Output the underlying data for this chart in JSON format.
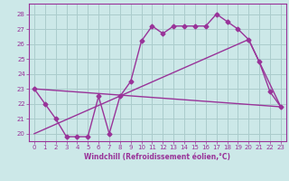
{
  "title": "",
  "xlabel": "Windchill (Refroidissement éolien,°C)",
  "background_color": "#cce8e8",
  "grid_color": "#aacccc",
  "line_color": "#993399",
  "spine_color": "#993399",
  "xlim": [
    -0.5,
    23.5
  ],
  "ylim": [
    19.5,
    28.7
  ],
  "xticks": [
    0,
    1,
    2,
    3,
    4,
    5,
    6,
    7,
    8,
    9,
    10,
    11,
    12,
    13,
    14,
    15,
    16,
    17,
    18,
    19,
    20,
    21,
    22,
    23
  ],
  "yticks": [
    20,
    21,
    22,
    23,
    24,
    25,
    26,
    27,
    28
  ],
  "line1_x": [
    0,
    1,
    2,
    3,
    4,
    5,
    6,
    7,
    8,
    9,
    10,
    11,
    12,
    13,
    14,
    15,
    16,
    17,
    18,
    19,
    20,
    21,
    22,
    23
  ],
  "line1_y": [
    23.0,
    22.0,
    21.0,
    19.8,
    19.8,
    19.8,
    22.5,
    20.0,
    22.5,
    23.5,
    26.2,
    27.2,
    26.7,
    27.2,
    27.2,
    27.2,
    27.2,
    28.0,
    27.5,
    27.0,
    26.3,
    24.8,
    22.8,
    21.8
  ],
  "line2_x": [
    0,
    23
  ],
  "line2_y": [
    23.0,
    21.8
  ],
  "line3_x": [
    0,
    20,
    23
  ],
  "line3_y": [
    20.0,
    26.3,
    21.8
  ],
  "marker": "D",
  "markersize": 2.5,
  "linewidth": 1.0,
  "tick_fontsize": 5.0,
  "xlabel_fontsize": 5.5,
  "xlabel_fontweight": "bold"
}
